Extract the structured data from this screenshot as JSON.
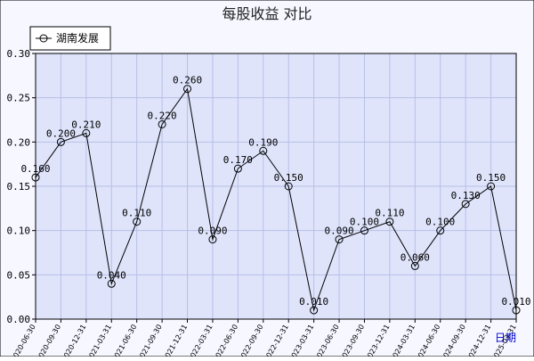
{
  "chart_data": {
    "type": "line",
    "title": "每股收益  对比",
    "xlabel": "日期",
    "ylabel": "",
    "ylim": [
      0,
      0.3
    ],
    "yticks": [
      "0.00",
      "0.05",
      "0.10",
      "0.15",
      "0.20",
      "0.25",
      "0.30"
    ],
    "grid": true,
    "legend": "top-left",
    "categories": [
      "2020-06-30",
      "2020-09-30",
      "2020-12-31",
      "2021-03-31",
      "2021-06-30",
      "2021-09-30",
      "2021-12-31",
      "2022-03-31",
      "2022-06-30",
      "2022-09-30",
      "2022-12-31",
      "2023-03-31",
      "2023-06-30",
      "2023-09-30",
      "2023-12-31",
      "2024-03-31",
      "2024-06-30",
      "2024-09-30",
      "2024-12-31",
      "2025-03-31"
    ],
    "series": [
      {
        "name": "湖南发展",
        "values": [
          0.16,
          0.2,
          0.21,
          0.04,
          0.11,
          0.22,
          0.26,
          0.09,
          0.17,
          0.19,
          0.15,
          0.01,
          0.09,
          0.1,
          0.11,
          0.06,
          0.1,
          0.13,
          0.15,
          0.01
        ],
        "labels": [
          "0.160",
          "0.200",
          "0.210",
          "0.040",
          "0.110",
          "0.220",
          "0.260",
          "0.090",
          "0.170",
          "0.190",
          "0.150",
          "0.010",
          "0.090",
          "0.100",
          "0.110",
          "0.060",
          "0.100",
          "0.130",
          "0.150",
          "0.010"
        ]
      }
    ],
    "colors": {
      "background": "#f6f7ff",
      "plot_background": "#dfe4fb",
      "grid": "#b7bfe6",
      "line": "#000000",
      "border": "#000000",
      "xlabel": "#0000cc"
    }
  }
}
